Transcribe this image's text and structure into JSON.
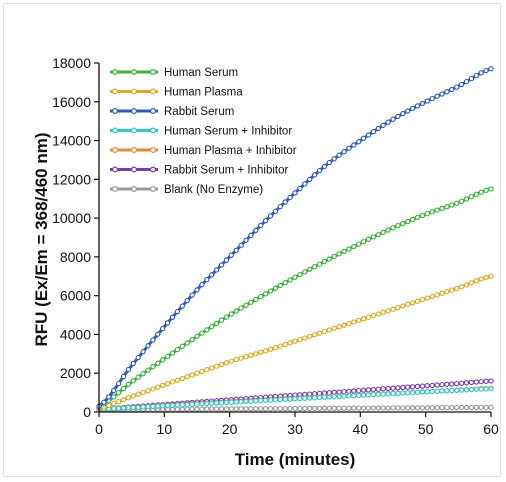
{
  "chart_data": {
    "type": "line",
    "xlabel": "Time (minutes)",
    "ylabel": "RFU (Ex/Em = 368/460 nm)",
    "xlim": [
      0,
      60
    ],
    "ylim": [
      0,
      18000
    ],
    "x_ticks": [
      0,
      10,
      20,
      30,
      40,
      50,
      60
    ],
    "y_ticks": [
      0,
      2000,
      4000,
      6000,
      8000,
      10000,
      12000,
      14000,
      16000,
      18000
    ],
    "grid": false,
    "legend_position": "top-left",
    "x": [
      0,
      5,
      10,
      15,
      20,
      25,
      30,
      35,
      40,
      45,
      50,
      55,
      60
    ],
    "series": [
      {
        "name": "Human Serum",
        "color": "#3cb23c",
        "values": [
          300,
          1550,
          2750,
          3900,
          5000,
          6000,
          6950,
          7850,
          8700,
          9500,
          10200,
          10800,
          11500
        ]
      },
      {
        "name": "Human Plasma",
        "color": "#d9aa22",
        "values": [
          200,
          800,
          1400,
          2000,
          2600,
          3100,
          3650,
          4200,
          4750,
          5300,
          5850,
          6400,
          7000
        ]
      },
      {
        "name": "Rabbit Serum",
        "color": "#2e5cb8",
        "values": [
          300,
          2400,
          4400,
          6300,
          8000,
          9700,
          11300,
          12800,
          14000,
          15100,
          16000,
          16800,
          17700
        ]
      },
      {
        "name": "Human Serum + Inhibitor",
        "color": "#33c4c4",
        "values": [
          150,
          230,
          320,
          410,
          500,
          590,
          680,
          770,
          860,
          950,
          1040,
          1120,
          1200
        ]
      },
      {
        "name": "Human Plasma + Inhibitor",
        "color": "#e58c3a",
        "values": [
          150,
          240,
          340,
          430,
          520,
          610,
          700,
          790,
          880,
          960,
          1050,
          1130,
          1220
        ]
      },
      {
        "name": "Rabbit Serum + Inhibitor",
        "color": "#7a3cb0",
        "values": [
          150,
          270,
          390,
          510,
          630,
          750,
          870,
          990,
          1110,
          1230,
          1350,
          1470,
          1600
        ]
      },
      {
        "name": "Blank (No Enzyme)",
        "color": "#999999",
        "values": [
          120,
          130,
          140,
          150,
          160,
          170,
          180,
          190,
          200,
          210,
          220,
          230,
          240
        ]
      }
    ]
  }
}
